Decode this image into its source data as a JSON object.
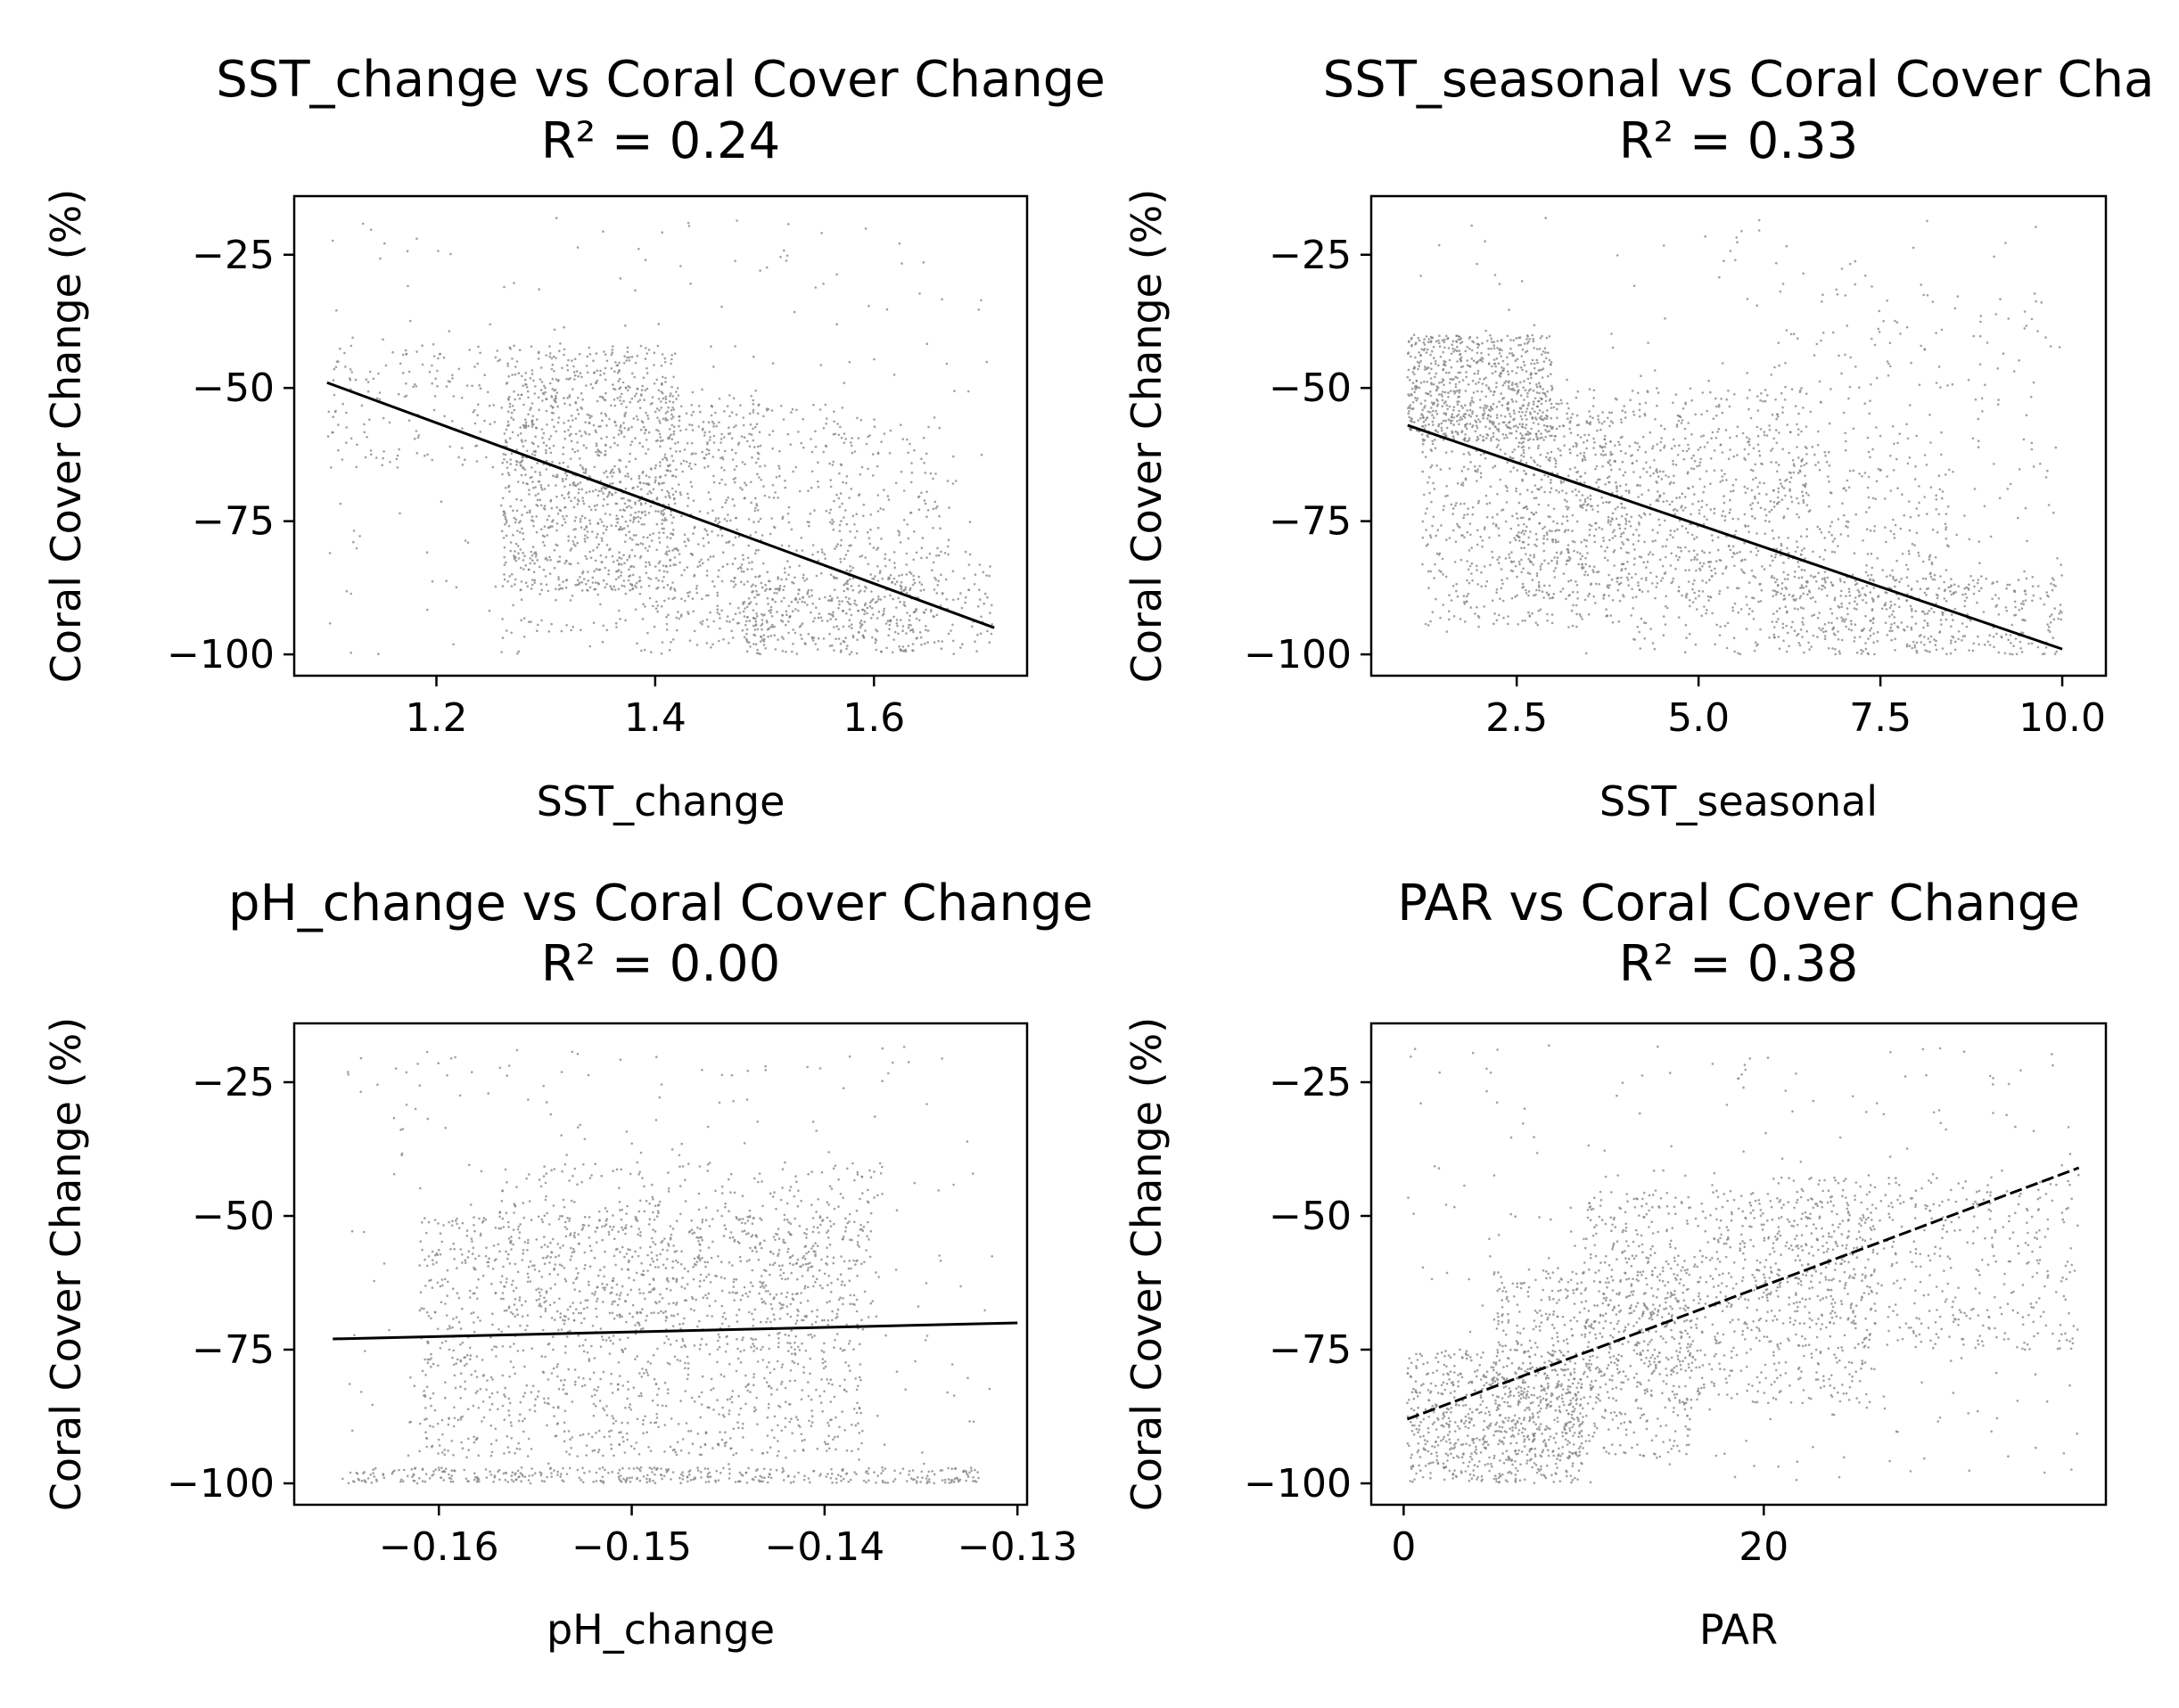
{
  "colors": {
    "points": "#808080",
    "fit": "#000000",
    "axes": "#000000",
    "background": "#ffffff"
  },
  "chart_data": [
    {
      "type": "scatter",
      "title": "SST_change vs Coral Cover Change",
      "subtitle": "R² = 0.24",
      "xlabel": "SST_change",
      "ylabel": "Coral Cover Change (%)",
      "xlim": [
        1.07,
        1.74
      ],
      "ylim": [
        -104,
        -14
      ],
      "xticks": [
        1.2,
        1.4,
        1.6
      ],
      "xtick_labels": [
        "1.2",
        "1.4",
        "1.6"
      ],
      "yticks": [
        -25,
        -50,
        -75,
        -100
      ],
      "ytick_labels": [
        "−25",
        "−50",
        "−75",
        "−100"
      ],
      "fit_line": {
        "x": [
          1.1,
          1.71
        ],
        "y": [
          -49,
          -95
        ],
        "style": "solid"
      },
      "point_clusters": [
        {
          "x": [
            1.26,
            1.42
          ],
          "y": [
            -88,
            -42
          ],
          "n": 900
        },
        {
          "x": [
            1.26,
            1.5
          ],
          "y": [
            -100,
            -50
          ],
          "n": 500
        },
        {
          "x": [
            1.4,
            1.58
          ],
          "y": [
            -95,
            -53
          ],
          "n": 380
        },
        {
          "x": [
            1.48,
            1.64
          ],
          "y": [
            -100,
            -85
          ],
          "n": 300
        },
        {
          "x": [
            1.56,
            1.66
          ],
          "y": [
            -95,
            -55
          ],
          "n": 180
        },
        {
          "x": [
            1.1,
            1.26
          ],
          "y": [
            -65,
            -42
          ],
          "n": 140
        },
        {
          "x": [
            1.6,
            1.71
          ],
          "y": [
            -100,
            -80
          ],
          "n": 120
        },
        {
          "x": [
            1.1,
            1.71
          ],
          "y": [
            -100,
            -18
          ],
          "n": 220
        }
      ],
      "grid": false,
      "legend": "none"
    },
    {
      "type": "scatter",
      "title": "SST_seasonal vs Coral Cover Cha",
      "subtitle": "R² = 0.33",
      "xlabel": "SST_seasonal",
      "ylabel": "Coral Cover Change (%)",
      "xlim": [
        0.5,
        10.6
      ],
      "ylim": [
        -104,
        -14
      ],
      "xticks": [
        2.5,
        5.0,
        7.5,
        10.0
      ],
      "xtick_labels": [
        "2.5",
        "5.0",
        "7.5",
        "10.0"
      ],
      "yticks": [
        -25,
        -50,
        -75,
        -100
      ],
      "ytick_labels": [
        "−25",
        "−50",
        "−75",
        "−100"
      ],
      "fit_line": {
        "x": [
          1.0,
          10.0
        ],
        "y": [
          -57,
          -99
        ],
        "style": "solid"
      },
      "point_clusters": [
        {
          "x": [
            1.0,
            3.0
          ],
          "y": [
            -60,
            -40
          ],
          "n": 700
        },
        {
          "x": [
            1.2,
            4.0
          ],
          "y": [
            -95,
            -55
          ],
          "n": 600
        },
        {
          "x": [
            2.5,
            6.5
          ],
          "y": [
            -90,
            -50
          ],
          "n": 700
        },
        {
          "x": [
            4.0,
            8.5
          ],
          "y": [
            -100,
            -60
          ],
          "n": 450
        },
        {
          "x": [
            6.0,
            10.0
          ],
          "y": [
            -100,
            -85
          ],
          "n": 400
        },
        {
          "x": [
            6.0,
            10.0
          ],
          "y": [
            -90,
            -30
          ],
          "n": 200
        },
        {
          "x": [
            1.0,
            10.0
          ],
          "y": [
            -100,
            -18
          ],
          "n": 200
        }
      ],
      "grid": false,
      "legend": "none"
    },
    {
      "type": "scatter",
      "title": "pH_change vs Coral Cover Change",
      "subtitle": "R² = 0.00",
      "xlabel": "pH_change",
      "ylabel": "Coral Cover Change (%)",
      "xlim": [
        -0.1675,
        -0.1295
      ],
      "ylim": [
        -104,
        -14
      ],
      "xticks": [
        -0.16,
        -0.15,
        -0.14,
        -0.13
      ],
      "xtick_labels": [
        "−0.16",
        "−0.15",
        "−0.14",
        "−0.13"
      ],
      "yticks": [
        -25,
        -50,
        -75,
        -100
      ],
      "ytick_labels": [
        "−25",
        "−50",
        "−75",
        "−100"
      ],
      "fit_line": {
        "x": [
          -0.1655,
          -0.13
        ],
        "y": [
          -73,
          -70
        ],
        "style": "solid"
      },
      "point_clusters": [
        {
          "x": [
            -0.161,
            -0.138
          ],
          "y": [
            -95,
            -50
          ],
          "n": 1300
        },
        {
          "x": [
            -0.157,
            -0.137
          ],
          "y": [
            -70,
            -40
          ],
          "n": 500
        },
        {
          "x": [
            -0.165,
            -0.132
          ],
          "y": [
            -100,
            -97
          ],
          "n": 400
        },
        {
          "x": [
            -0.165,
            -0.131
          ],
          "y": [
            -100,
            -18
          ],
          "n": 260
        }
      ],
      "grid": false,
      "legend": "none"
    },
    {
      "type": "scatter",
      "title": "PAR vs Coral Cover Change",
      "subtitle": "R² = 0.38",
      "xlabel": "PAR",
      "ylabel": "Coral Cover Change (%)",
      "xlim": [
        -1.8,
        39
      ],
      "ylim": [
        -104,
        -14
      ],
      "xticks": [
        0,
        20
      ],
      "xtick_labels": [
        "0",
        "20"
      ],
      "yticks": [
        -25,
        -50,
        -75,
        -100
      ],
      "ytick_labels": [
        "−25",
        "−50",
        "−75",
        "−100"
      ],
      "fit_line": {
        "x": [
          0.2,
          37.5
        ],
        "y": [
          -88,
          -41
        ],
        "style": "dashed"
      },
      "point_clusters": [
        {
          "x": [
            0.2,
            10
          ],
          "y": [
            -100,
            -75
          ],
          "n": 700
        },
        {
          "x": [
            5,
            16
          ],
          "y": [
            -95,
            -60
          ],
          "n": 600
        },
        {
          "x": [
            10,
            26
          ],
          "y": [
            -85,
            -45
          ],
          "n": 800
        },
        {
          "x": [
            20,
            37.5
          ],
          "y": [
            -75,
            -42
          ],
          "n": 500
        },
        {
          "x": [
            0.2,
            37.5
          ],
          "y": [
            -100,
            -18
          ],
          "n": 300
        }
      ],
      "grid": false,
      "legend": "none"
    }
  ]
}
